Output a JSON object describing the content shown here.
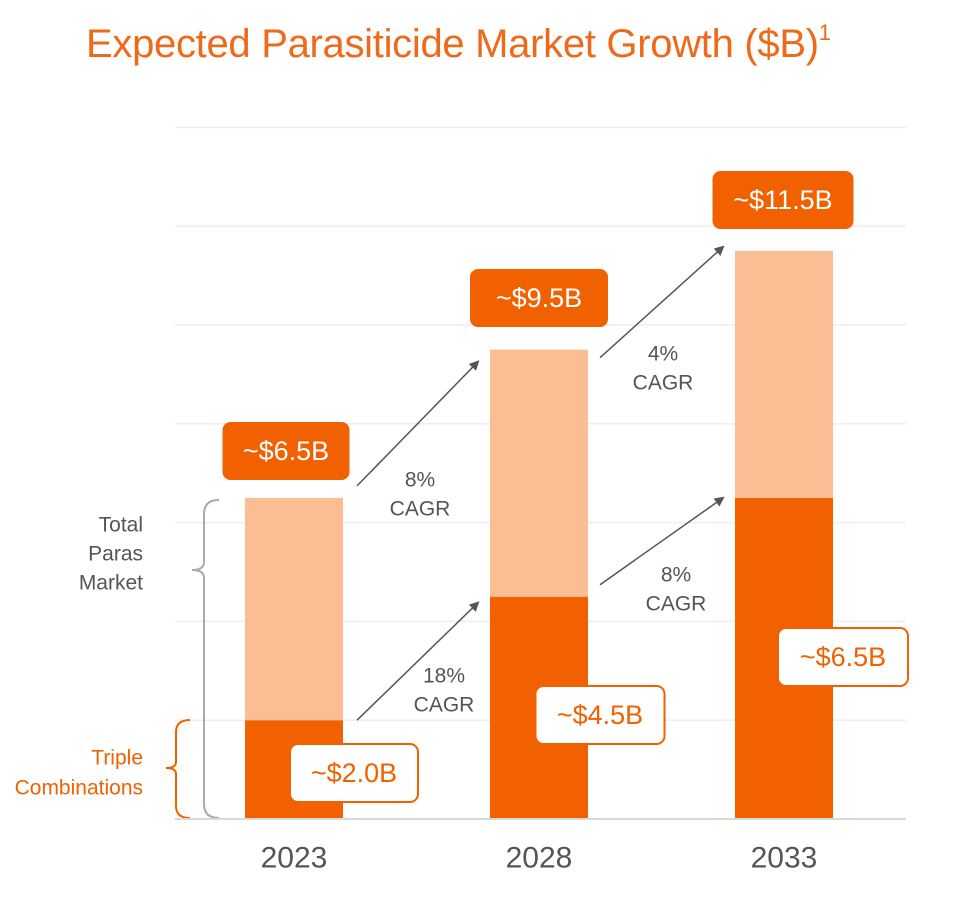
{
  "title": "Expected Parasiticide Market Growth ($B)",
  "title_footnote": "1",
  "colors": {
    "accent": "#F26100",
    "light": "#FBBD94",
    "text": "#555555",
    "grid": "#EEEEEE",
    "bracket": "#AAAAAA"
  },
  "chart_data": {
    "type": "bar",
    "stacked": true,
    "title": "Expected Parasiticide Market Growth ($B)",
    "categories": [
      "2023",
      "2028",
      "2033"
    ],
    "series": [
      {
        "name": "Triple Combinations",
        "values": [
          2.0,
          4.5,
          6.5
        ],
        "color": "#F26100"
      },
      {
        "name": "Total Paras Market",
        "values": [
          4.5,
          5.0,
          5.0
        ],
        "color": "#FBBD94"
      }
    ],
    "totals": [
      6.5,
      9.5,
      11.5
    ],
    "ylim": [
      0,
      14
    ],
    "grid": true,
    "total_labels": [
      "~$6.5B",
      "~$9.5B",
      "~$11.5B"
    ],
    "bottom_labels": [
      "~$2.0B",
      "~$4.5B",
      "~$6.5B"
    ],
    "growth_annotations": {
      "total": [
        {
          "pct": "8%",
          "label": "CAGR"
        },
        {
          "pct": "4%",
          "label": "CAGR"
        }
      ],
      "bottom": [
        {
          "pct": "18%",
          "label": "CAGR"
        },
        {
          "pct": "8%",
          "label": "CAGR"
        }
      ]
    },
    "legend": {
      "total": [
        "Total",
        "Paras",
        "Market"
      ],
      "triple": [
        "Triple",
        "Combinations"
      ]
    }
  }
}
